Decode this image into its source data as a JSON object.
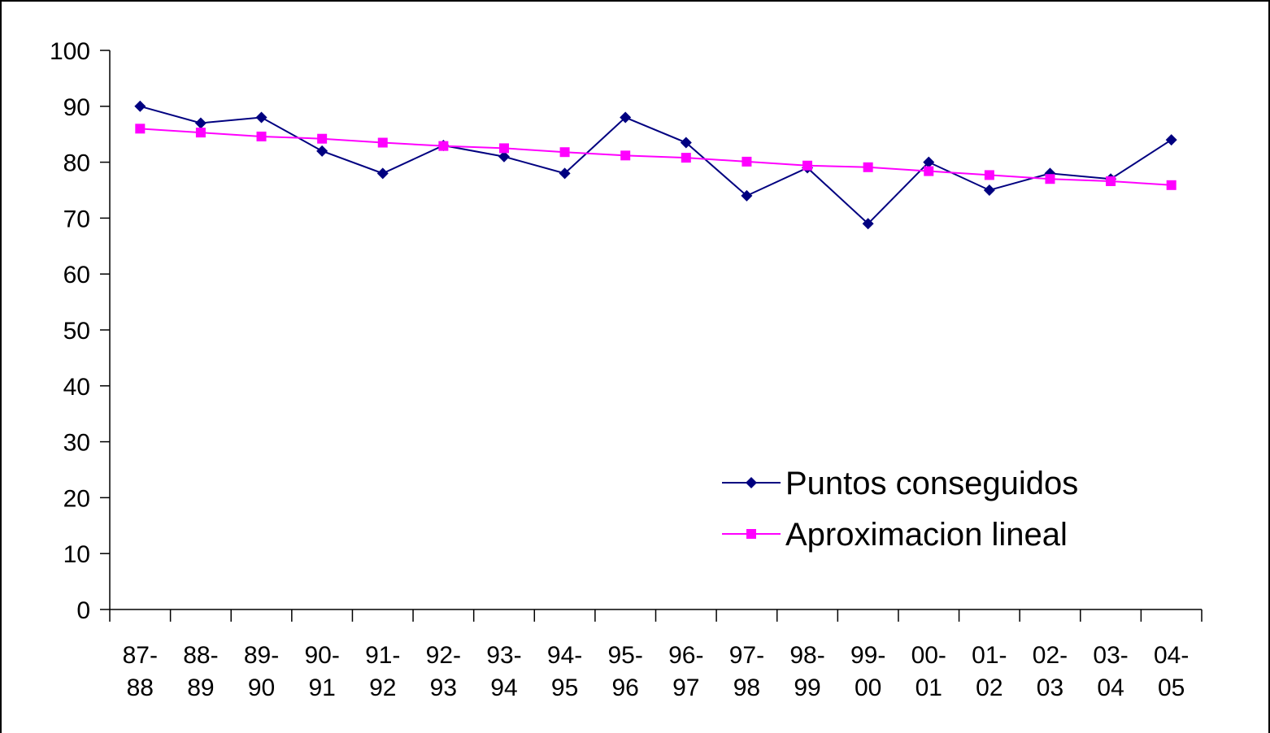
{
  "chart_data": {
    "type": "line",
    "categories": [
      "87-88",
      "88-89",
      "89-90",
      "90-91",
      "91-92",
      "92-93",
      "93-94",
      "94-95",
      "95-96",
      "96-97",
      "97-98",
      "98-99",
      "99-00",
      "00-01",
      "01-02",
      "02-03",
      "03-04",
      "04-05"
    ],
    "series": [
      {
        "name": "Puntos conseguidos",
        "color": "#000080",
        "marker": "diamond",
        "values": [
          90,
          87,
          88,
          82,
          78,
          83,
          81,
          78,
          88,
          83.5,
          74,
          79,
          69,
          80,
          75,
          78,
          77,
          84
        ]
      },
      {
        "name": "Aproximacion lineal",
        "color": "#ff00ff",
        "marker": "square",
        "values": [
          86,
          85.3,
          84.6,
          84.2,
          83.5,
          82.9,
          82.5,
          81.8,
          81.2,
          80.8,
          80.1,
          79.4,
          79.1,
          78.4,
          77.7,
          77,
          76.6,
          75.9
        ]
      }
    ],
    "ylim": [
      0,
      100
    ],
    "yticks": [
      0,
      10,
      20,
      30,
      40,
      50,
      60,
      70,
      80,
      90,
      100
    ],
    "grid": false,
    "legend": "right"
  }
}
